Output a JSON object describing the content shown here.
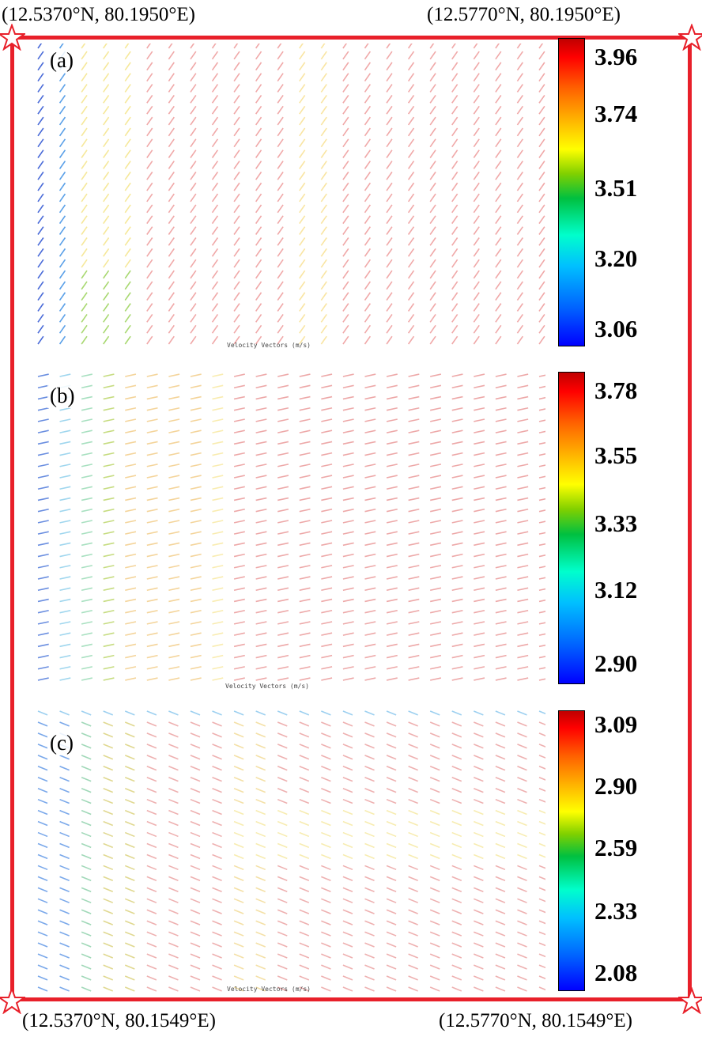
{
  "corners": {
    "top_left": "(12.5370°N, 80.1950°E)",
    "top_right": "(12.5770°N, 80.1950°E)",
    "bottom_left": "(12.5370°N, 80.1549°E)",
    "bottom_right": "(12.5770°N, 80.1549°E)"
  },
  "colors": {
    "frame": "#e8202a",
    "star": "#e8202a"
  },
  "panels": [
    {
      "label": "(a)",
      "caption": "Velocity Vectors (m/s)",
      "scale_ticks": [
        "3.96",
        "3.74",
        "3.51",
        "3.20",
        "3.06"
      ]
    },
    {
      "label": "(b)",
      "caption": "Velocity Vectors (m/s)",
      "scale_ticks": [
        "3.78",
        "3.55",
        "3.33",
        "3.12",
        "2.90"
      ]
    },
    {
      "label": "(c)",
      "caption": "Velocity Vectors (m/s)",
      "scale_ticks": [
        "3.09",
        "2.90",
        "2.59",
        "2.33",
        "2.08"
      ]
    }
  ]
}
